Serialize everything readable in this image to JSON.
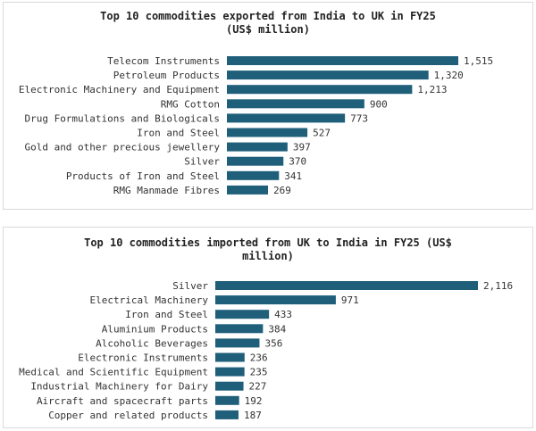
{
  "chart_data": [
    {
      "type": "bar",
      "orientation": "horizontal",
      "title": "Top 10 commodities exported from India to UK in FY25 (US$ million)",
      "title_lines": [
        "Top 10 commodities exported from India to UK in FY25",
        "(US$ million)"
      ],
      "categories": [
        "Telecom Instruments",
        "Petroleum Products",
        "Electronic Machinery and Equipment",
        "RMG Cotton",
        "Drug Formulations and Biologicals",
        "Iron and Steel",
        "Gold and other precious jewellery",
        "Silver",
        "Products of Iron and Steel",
        "RMG Manmade Fibres"
      ],
      "values": [
        1515,
        1320,
        1213,
        900,
        773,
        527,
        397,
        370,
        341,
        269
      ],
      "value_labels": [
        "1,515",
        "1,320",
        "1,213",
        "900",
        "773",
        "527",
        "397",
        "370",
        "341",
        "269"
      ],
      "bar_color": "#1f5f7a",
      "grid": false,
      "legend": "none"
    },
    {
      "type": "bar",
      "orientation": "horizontal",
      "title": "Top 10 commodities imported from UK to India in FY25 (US$ million)",
      "title_lines": [
        "Top 10 commodities imported from UK to India in FY25 (US$",
        "million)"
      ],
      "categories": [
        "Silver",
        "Electrical Machinery",
        "Iron and Steel",
        "Aluminium Products",
        "Alcoholic Beverages",
        "Electronic Instruments",
        "Medical and Scientific Equipment",
        "Industrial Machinery for Dairy",
        "Aircraft and spacecraft parts",
        "Copper and related products"
      ],
      "values": [
        2116,
        971,
        433,
        384,
        356,
        236,
        235,
        227,
        192,
        187
      ],
      "value_labels": [
        "2,116",
        "971",
        "433",
        "384",
        "356",
        "236",
        "235",
        "227",
        "192",
        "187"
      ],
      "bar_color": "#1f5f7a",
      "grid": false,
      "legend": "none"
    }
  ]
}
